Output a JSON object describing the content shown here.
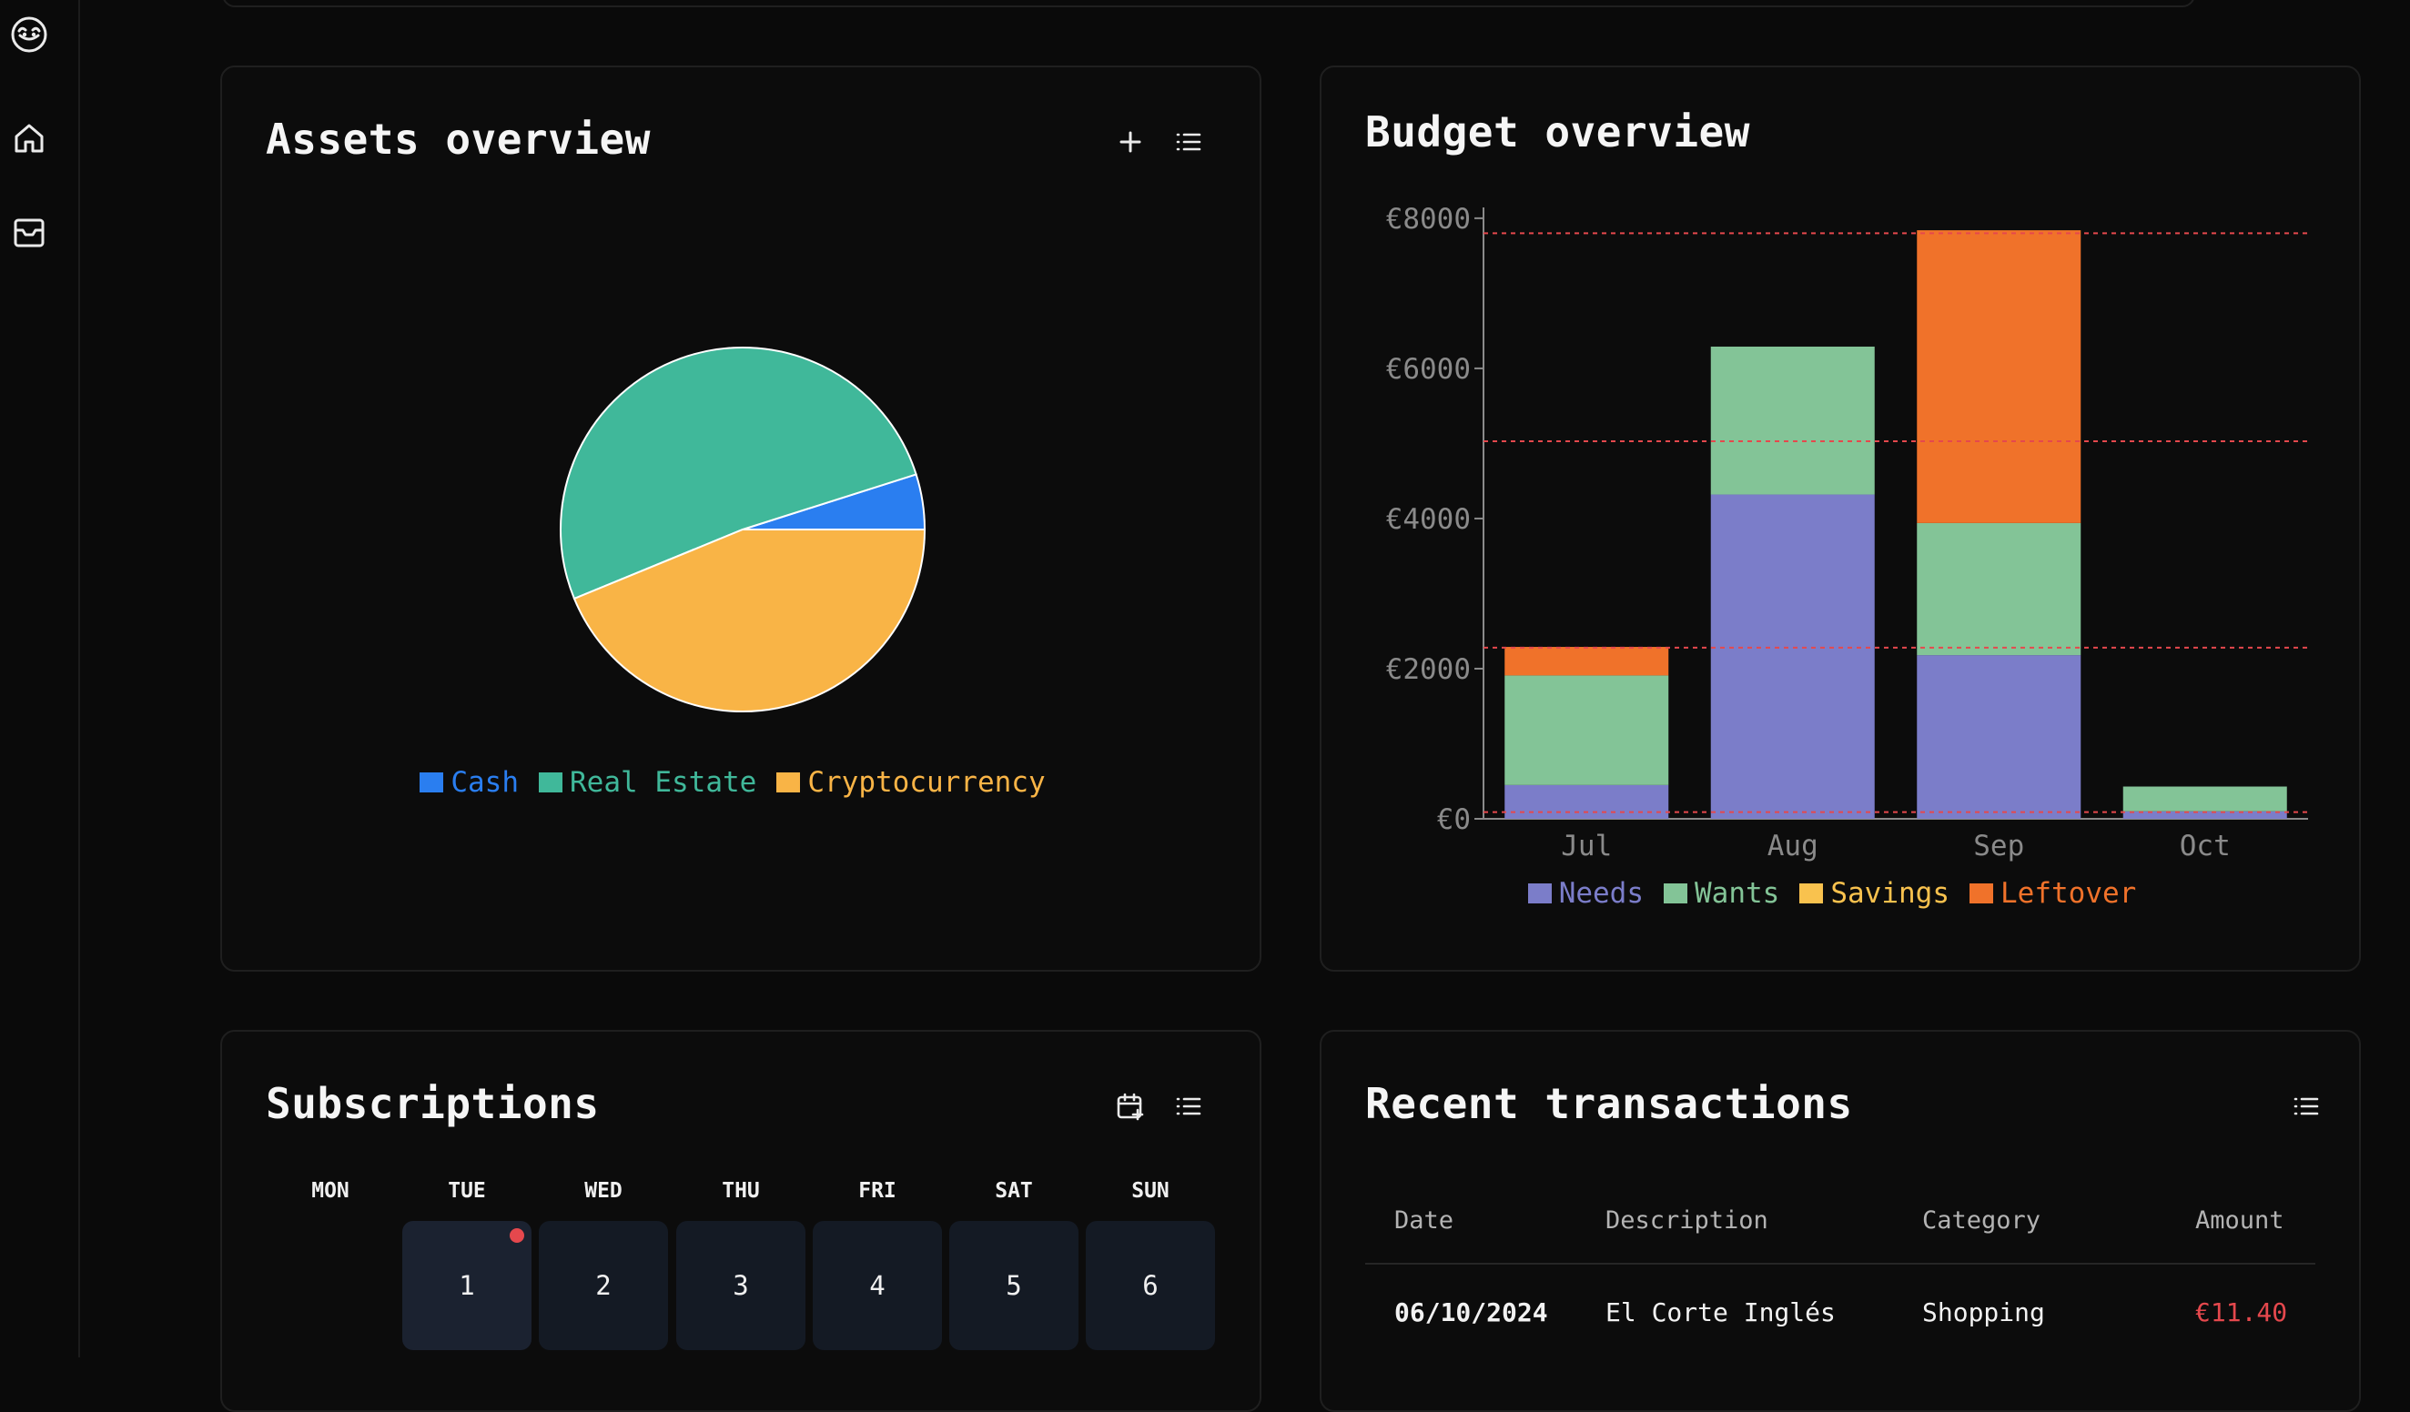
{
  "sidebar": {
    "items": [
      {
        "icon": "logo-icon"
      },
      {
        "icon": "home-icon"
      },
      {
        "icon": "inbox-icon"
      }
    ]
  },
  "assets": {
    "title": "Assets overview",
    "actions": [
      "plus-icon",
      "list-icon"
    ],
    "chart_data": {
      "type": "pie",
      "labels": [
        "Cash",
        "Real Estate",
        "Cryptocurrency"
      ],
      "values": [
        4.9,
        51.3,
        43.8
      ],
      "colors": [
        "#2a7ef0",
        "#40b89a",
        "#f9b446"
      ],
      "legend_position": "bottom"
    }
  },
  "budget": {
    "title": "Budget overview",
    "chart_data": {
      "type": "bar",
      "stacked": true,
      "categories": [
        "Jul",
        "Aug",
        "Sep",
        "Oct"
      ],
      "series": [
        {
          "name": "Needs",
          "color": "#7b7dc9",
          "values": [
            450,
            4320,
            2180,
            100
          ]
        },
        {
          "name": "Wants",
          "color": "#83c497",
          "values": [
            1460,
            1970,
            1760,
            330
          ]
        },
        {
          "name": "Savings",
          "color": "#f9c24e",
          "values": [
            0,
            0,
            0,
            0
          ]
        },
        {
          "name": "Leftover",
          "color": "#f0722a",
          "values": [
            380,
            0,
            3900,
            0
          ]
        }
      ],
      "reference_lines": [
        7800,
        5030,
        2280,
        90
      ],
      "reference_color": "#e5484d",
      "ylim": [
        0,
        8000
      ],
      "yticks": [
        0,
        2000,
        4000,
        6000,
        8000
      ],
      "ytick_labels": [
        "€0",
        "€2000",
        "€4000",
        "€6000",
        "€8000"
      ],
      "legend_position": "bottom",
      "grid": false
    }
  },
  "subscriptions": {
    "title": "Subscriptions",
    "actions": [
      "calendar-plus-icon",
      "list-icon"
    ],
    "weekdays": [
      "MON",
      "TUE",
      "WED",
      "THU",
      "FRI",
      "SAT",
      "SUN"
    ],
    "days": [
      "1",
      "2",
      "3",
      "4",
      "5",
      "6"
    ]
  },
  "transactions": {
    "title": "Recent transactions",
    "actions": [
      "list-icon"
    ],
    "columns": [
      "Date",
      "Description",
      "Category",
      "Amount"
    ],
    "rows": [
      {
        "date": "06/10/2024",
        "description": "El Corte Inglés",
        "category": "Shopping",
        "amount": "€11.40",
        "amount_color": "#e5484d"
      }
    ]
  }
}
